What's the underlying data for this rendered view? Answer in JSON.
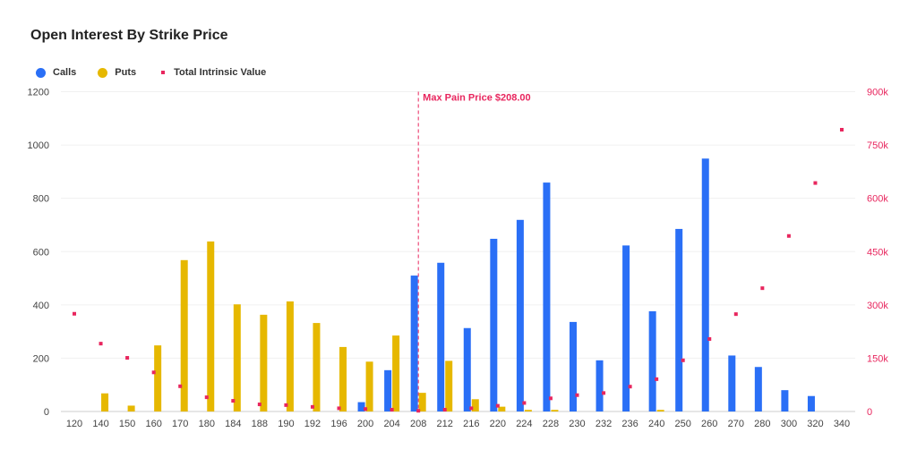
{
  "chart_data": {
    "type": "bar",
    "title": "Open Interest By Strike Price",
    "categories": [
      "120",
      "140",
      "150",
      "160",
      "170",
      "180",
      "184",
      "188",
      "190",
      "192",
      "196",
      "200",
      "204",
      "208",
      "212",
      "216",
      "220",
      "224",
      "228",
      "230",
      "232",
      "236",
      "240",
      "250",
      "260",
      "270",
      "280",
      "300",
      "320",
      "340"
    ],
    "series": [
      {
        "name": "Calls",
        "type": "bar",
        "axis": "left",
        "color": "#2a6ff6",
        "values": [
          0,
          0,
          0,
          0,
          0,
          0,
          0,
          0,
          0,
          0,
          0,
          35,
          155,
          510,
          558,
          313,
          648,
          719,
          859,
          336,
          192,
          623,
          376,
          685,
          949,
          210,
          167,
          80,
          58,
          0
        ]
      },
      {
        "name": "Puts",
        "type": "bar",
        "axis": "left",
        "color": "#e6b800",
        "values": [
          0,
          68,
          22,
          248,
          568,
          638,
          402,
          363,
          413,
          332,
          242,
          187,
          285,
          70,
          190,
          46,
          18,
          6,
          6,
          0,
          0,
          0,
          6,
          0,
          0,
          0,
          0,
          0,
          0,
          0
        ]
      },
      {
        "name": "Total Intrinsic Value",
        "type": "scatter",
        "axis": "right",
        "color": "#e8265e",
        "values": [
          275000,
          191000,
          151000,
          110000,
          71000,
          40000,
          30000,
          20000,
          18000,
          13000,
          9000,
          7000,
          5000,
          2000,
          5000,
          9000,
          16000,
          24000,
          37000,
          46000,
          52000,
          70000,
          91000,
          144000,
          204000,
          274000,
          347000,
          494000,
          643000,
          793000
        ]
      }
    ],
    "left_axis": {
      "ylim": [
        0,
        1200
      ],
      "ticks": [
        "0",
        "200",
        "400",
        "600",
        "800",
        "1000",
        "1200"
      ]
    },
    "right_axis": {
      "ylim": [
        0,
        900000
      ],
      "ticks": [
        "0",
        "150k",
        "300k",
        "450k",
        "600k",
        "750k",
        "900k"
      ],
      "color": "#e8265e"
    },
    "annotation": {
      "label": "Max Pain Price $208.00",
      "strike": "208",
      "color": "#e8265e"
    },
    "grid": true,
    "legend": "top-left"
  }
}
